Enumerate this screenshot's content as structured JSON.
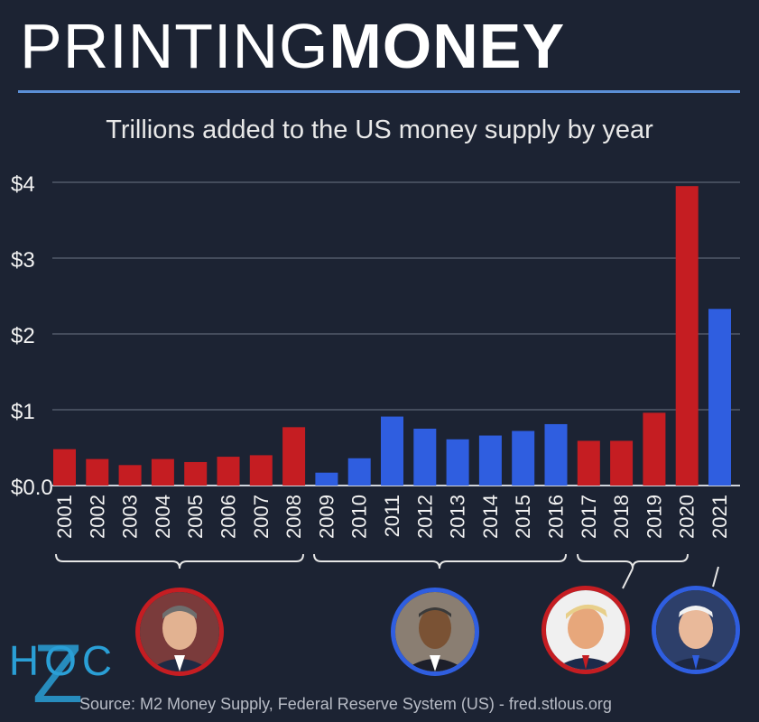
{
  "title_part1": "PRINTING",
  "title_part2": "MONEY",
  "subtitle": "Trillions added to the US money supply by year",
  "source": "Source: M2 Money Supply, Federal Reserve System (US) - fred.stlous.org",
  "logo_text": "HOC",
  "logo_letter": "Z",
  "colors": {
    "red": "#c51d22",
    "blue": "#2f5ee0",
    "background": "#1c2333"
  },
  "chart_data": {
    "type": "bar",
    "title": "Trillions added to the US money supply by year",
    "xlabel": "",
    "ylabel": "",
    "ylim": [
      0,
      4
    ],
    "yticks": [
      "$0.0",
      "$1",
      "$2",
      "$3",
      "$4"
    ],
    "grid": true,
    "categories": [
      "2001",
      "2002",
      "2003",
      "2004",
      "2005",
      "2006",
      "2007",
      "2008",
      "2009",
      "2010",
      "2011",
      "2012",
      "2013",
      "2014",
      "2015",
      "2016",
      "2017",
      "2018",
      "2019",
      "2020",
      "2021"
    ],
    "values": [
      0.48,
      0.35,
      0.27,
      0.35,
      0.31,
      0.38,
      0.4,
      0.77,
      0.17,
      0.36,
      0.91,
      0.75,
      0.61,
      0.66,
      0.72,
      0.81,
      0.59,
      0.59,
      0.96,
      3.95,
      2.33
    ],
    "bar_colors": [
      "red",
      "red",
      "red",
      "red",
      "red",
      "red",
      "red",
      "red",
      "blue",
      "blue",
      "blue",
      "blue",
      "blue",
      "blue",
      "blue",
      "blue",
      "red",
      "red",
      "red",
      "red",
      "blue"
    ]
  },
  "portraits": [
    {
      "name": "portrait-bush",
      "border": "red",
      "icon": "president-portrait-icon"
    },
    {
      "name": "portrait-obama",
      "border": "blue",
      "icon": "president-portrait-icon"
    },
    {
      "name": "portrait-trump",
      "border": "red",
      "icon": "president-portrait-icon"
    },
    {
      "name": "portrait-biden",
      "border": "blue",
      "icon": "president-portrait-icon"
    }
  ]
}
